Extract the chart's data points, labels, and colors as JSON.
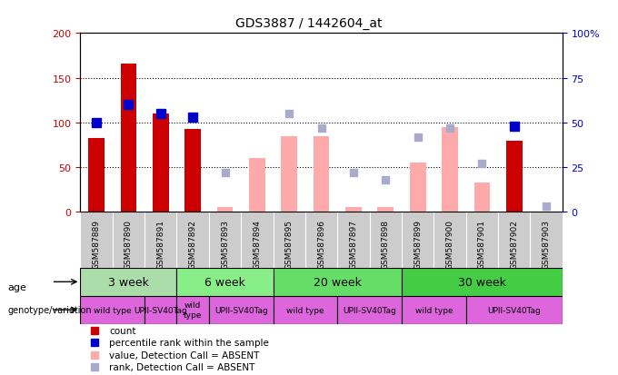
{
  "title": "GDS3887 / 1442604_at",
  "samples": [
    "GSM587889",
    "GSM587890",
    "GSM587891",
    "GSM587892",
    "GSM587893",
    "GSM587894",
    "GSM587895",
    "GSM587896",
    "GSM587897",
    "GSM587898",
    "GSM587899",
    "GSM587900",
    "GSM587901",
    "GSM587902",
    "GSM587903"
  ],
  "count": [
    83,
    166,
    110,
    93,
    null,
    null,
    null,
    null,
    null,
    null,
    null,
    null,
    null,
    80,
    null
  ],
  "percentile_rank_pct": [
    50,
    60,
    55,
    53,
    null,
    null,
    null,
    null,
    null,
    null,
    null,
    null,
    null,
    48,
    null
  ],
  "value_absent": [
    null,
    null,
    null,
    null,
    5,
    60,
    85,
    85,
    5,
    5,
    55,
    95,
    33,
    null,
    null
  ],
  "rank_absent_pct": [
    null,
    null,
    null,
    null,
    22,
    null,
    55,
    47,
    22,
    18,
    42,
    47,
    27,
    null,
    3
  ],
  "count_color": "#cc0000",
  "percentile_color": "#0000cc",
  "value_absent_color": "#ffaaaa",
  "rank_absent_color": "#aaaacc",
  "ylim_left": [
    0,
    200
  ],
  "ylim_right": [
    0,
    100
  ],
  "yticks_left": [
    0,
    50,
    100,
    150,
    200
  ],
  "yticks_right": [
    0,
    25,
    50,
    75,
    100
  ],
  "age_groups": [
    {
      "label": "3 week",
      "start": 0,
      "end": 3,
      "color": "#aaddaa"
    },
    {
      "label": "6 week",
      "start": 3,
      "end": 6,
      "color": "#88ee88"
    },
    {
      "label": "20 week",
      "start": 6,
      "end": 10,
      "color": "#66dd66"
    },
    {
      "label": "30 week",
      "start": 10,
      "end": 15,
      "color": "#44cc44"
    }
  ],
  "geno_boundaries": [
    [
      0,
      2,
      "wild type"
    ],
    [
      2,
      3,
      "UPII-SV40Tag"
    ],
    [
      3,
      4,
      "wild\ntype"
    ],
    [
      4,
      6,
      "UPII-SV40Tag"
    ],
    [
      6,
      8,
      "wild type"
    ],
    [
      8,
      10,
      "UPII-SV40Tag"
    ],
    [
      10,
      12,
      "wild type"
    ],
    [
      12,
      15,
      "UPII-SV40Tag"
    ]
  ],
  "genotype_color": "#dd66dd",
  "bar_width": 0.5,
  "marker_size": 7,
  "sample_area_color": "#cccccc"
}
